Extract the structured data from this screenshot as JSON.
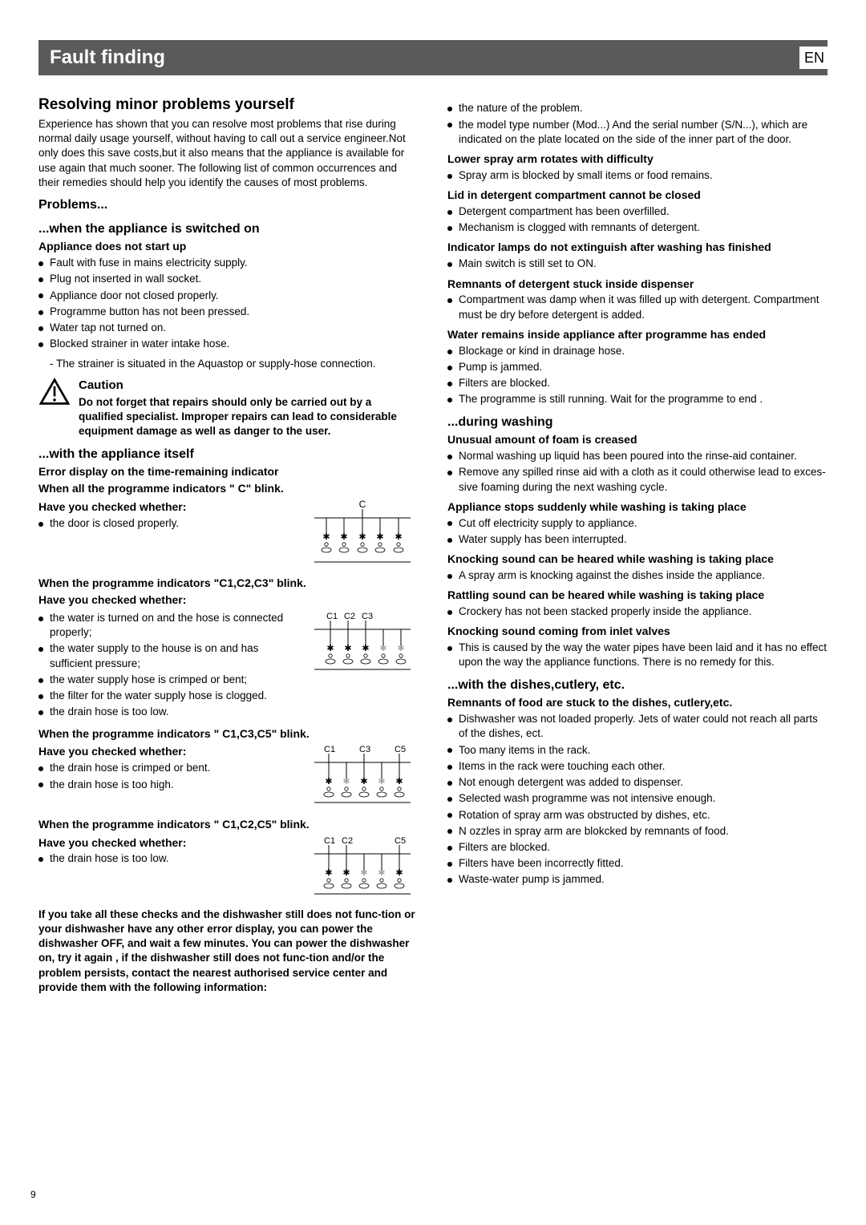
{
  "lang": "EN",
  "page_number": "9",
  "title": "Fault finding",
  "h2_resolving": "Resolving minor problems yourself",
  "intro": "Experience has shown that you can resolve most problems that  rise during normal daily usage yourself, without having to call out a service engineer.Not only does this save costs,but it also means that the appliance is available for use again that much sooner. The following list of common occurrences and their remedies should help you identify the causes of most problems.",
  "h3_problems": "Problems...",
  "h3_switched_on": "...when the appliance is switched on",
  "h4_not_start": "Appliance does not start up",
  "not_start_items": [
    "Fault with fuse in mains electricity supply.",
    "Plug not inserted in wall socket.",
    "Appliance door not closed properly.",
    "Programme button has not been pressed.",
    "Water tap not turned on.",
    "Blocked strainer in water intake hose."
  ],
  "not_start_sub": "- The strainer is situated in the Aquastop or supply-hose connection.",
  "caution_title": "Caution",
  "caution_body": "Do not forget that repairs should only be carried out by a qualified specialist. Improper repairs can lead to considerable equipment damage as well as danger to the user.",
  "h3_itself": "...with the appliance itself",
  "h4_error_display": "Error display  on the time-remaining indicator",
  "h4_all_c": "When all the programme indicators \" C\"  blink.",
  "h4_have_checked": "Have you checked whether:",
  "all_c_item": "the door is closed properly.",
  "h4_c123": "When the programme indicators \"C1,C2,C3\" blink.",
  "c123_items": [
    "the water is turned on and the hose is connected properly;",
    "the water supply to the house is on and has sufficient pressure;",
    "the water supply hose is crimped or bent;",
    "the filter for the water supply hose is clogged.",
    "the drain hose is too low."
  ],
  "h4_c135": "When the programme indicators \" C1,C3,C5\" blink.",
  "c135_items": [
    "the drain hose is crimped or bent.",
    "the drain hose is too high."
  ],
  "h4_c125": "When the programme indicators \" C1,C2,C5\" blink.",
  "c125_item": "the drain hose is too low.",
  "final_note": "If you take all these checks and the dishwasher still does not func-tion or your dishwasher have any other error display, you can power the dishwasher OFF, and wait a few minutes. You can power the dishwasher on, try it again , if the dishwasher still does not func-tion and/or the problem persists, contact the nearest authorised service center and provide them with the following information:",
  "r_info": [
    "the nature of the problem.",
    "the model type number (Mod...) And the serial number (S/N...), which are indicated on the plate located  on the side of the inner part of the door."
  ],
  "h4_lower_spray": "Lower spray arm rotates with difficulty",
  "lower_spray_item": "Spray  arm is blocked by small items or food remains.",
  "h4_lid": "Lid in detergent compartment cannot be closed",
  "lid_items": [
    "Detergent compartment has been overfilled.",
    "Mechanism is clogged with remnants of detergent."
  ],
  "h4_lamps": "Indicator lamps do not extinguish after washing has finished",
  "lamps_item": "Main switch is still set to ON.",
  "h4_remnants": "Remnants of detergent stuck inside dispenser",
  "remnants_item": "Compartment was damp when it was filled up with detergent. Compartment must be dry before detergent is added.",
  "h4_water_remains": "Water remains inside appliance after programme has ended",
  "water_remains_items": [
    "Blockage or kind in drainage hose.",
    "Pump is jammed.",
    "Filters are blocked.",
    "The programme is still running. Wait for the programme to end ."
  ],
  "h3_during": "...during washing",
  "h4_foam": "Unusual amount of foam is creased",
  "foam_items": [
    "Normal washing up liquid has been poured into the rinse-aid container.",
    "Remove any spilled rinse aid with a cloth as it could otherwise lead to exces-sive foaming during the next washing cycle."
  ],
  "h4_stops": "Appliance stops suddenly while washing is taking place",
  "stops_items": [
    "Cut off electricity supply to appliance.",
    "Water supply has been interrupted."
  ],
  "h4_knock1": "Knocking sound can be heared while washing is taking place",
  "knock1_item": "A spray arm is knocking against the dishes inside the appliance.",
  "h4_rattle": "Rattling sound can be heared while washing is taking place",
  "rattle_item": "Crockery has not been stacked properly inside the appliance.",
  "h4_knock2": "Knocking sound coming from inlet valves",
  "knock2_item": "This is caused by the way the water pipes have been laid and it has no effect upon the way the appliance functions. There is no remedy for this.",
  "h3_dishes": "...with the dishes,cutlery, etc.",
  "h4_food": "Remnants of food are stuck to the dishes, cutlery,etc.",
  "food_items": [
    "Dishwasher was not  loaded properly. Jets of water could not reach all parts of the dishes, ect.",
    "Too many items in the rack.",
    "Items in the rack were touching each other.",
    "Not enough detergent was added to dispenser.",
    "Selected wash programme was not intensive enough.",
    "Rotation of spray arm was obstructed by dishes, etc.",
    "N ozzles in spray arm are blokcked by remnants of food.",
    "Filters are blocked.",
    "Filters have been incorrectly fitted.",
    "Waste-water pump is jammed."
  ],
  "diag": {
    "c_label": "C",
    "c123_labels": [
      "C1",
      "C2",
      "C3"
    ],
    "c135_labels": [
      "C1",
      "C3",
      "C5"
    ],
    "c125_labels": [
      "C1",
      "C2",
      "C5"
    ],
    "stroke": "#000000",
    "fill": "#ffffff"
  }
}
